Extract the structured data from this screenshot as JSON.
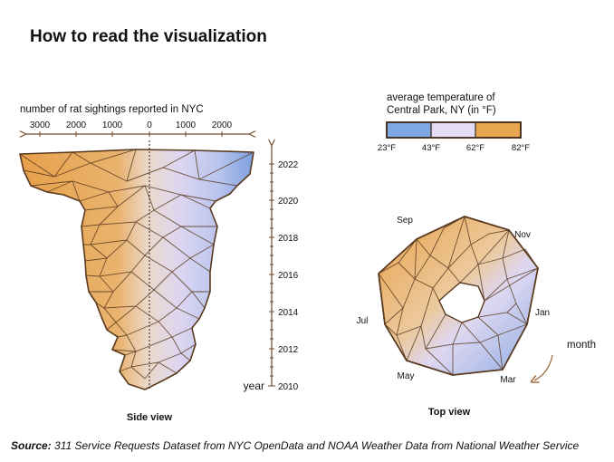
{
  "title": "How to read the visualization",
  "side_view": {
    "axis_label": "number of rat sightings reported in NYC",
    "x_ticks": [
      "3000",
      "2000",
      "1000",
      "0",
      "1000",
      "2000"
    ],
    "year_label": "year",
    "year_ticks": [
      "2022",
      "2020",
      "2018",
      "2016",
      "2014",
      "2012",
      "2010"
    ],
    "caption": "Side view"
  },
  "legend": {
    "title_line1": "average temperature of",
    "title_line2": "Central Park, NY (in °F)",
    "colors": [
      "#7fa7e2",
      "#e3dcf4",
      "#e8a650"
    ],
    "ticks": [
      "23°F",
      "43°F",
      "62°F",
      "82°F"
    ]
  },
  "top_view": {
    "months": [
      "Sep",
      "Nov",
      "Jul",
      "Jan",
      "May",
      "Mar"
    ],
    "month_axis_label": "month",
    "caption": "Top view"
  },
  "source": {
    "label": "Source:",
    "text": " 311 Service Requests Dataset from NYC OpenData and NOAA Weather Data from National Weather Service"
  }
}
